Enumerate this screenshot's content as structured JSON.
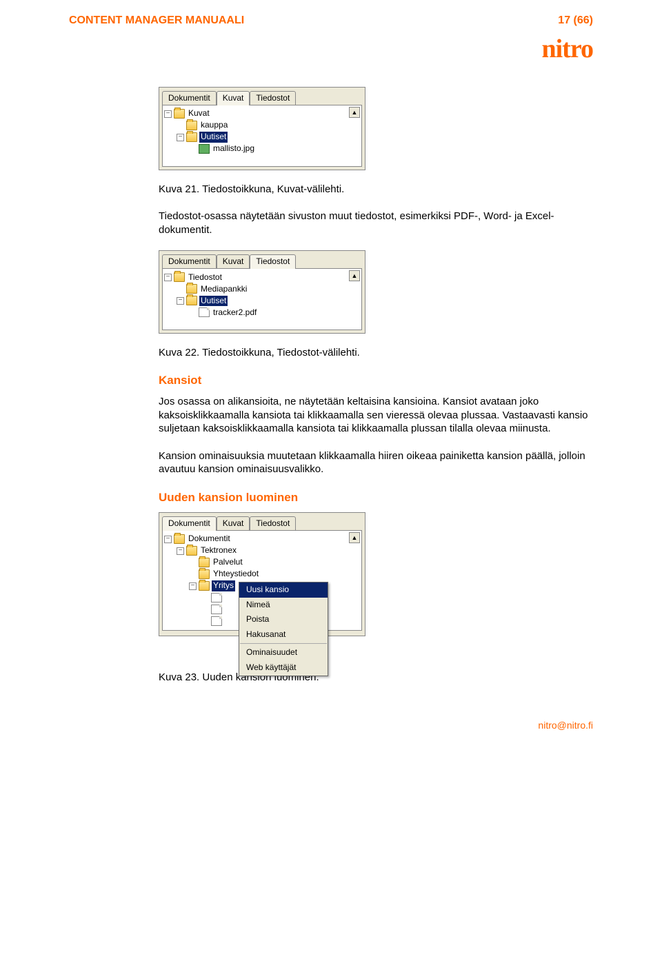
{
  "colors": {
    "accent": "#ff6600",
    "panel_bg": "#ece9d8",
    "selection_bg": "#0a246a",
    "selection_fg": "#ffffff"
  },
  "header": {
    "title": "CONTENT MANAGER MANUAALI",
    "page": "17 (66)",
    "logo_text": "nitro"
  },
  "panel1": {
    "tabs": [
      "Dokumentit",
      "Kuvat",
      "Tiedostot"
    ],
    "active_tab": 1,
    "rows": [
      {
        "indent": 0,
        "toggle": "−",
        "icon": "folder",
        "label": "Kuvat",
        "selected": false
      },
      {
        "indent": 1,
        "toggle": "",
        "icon": "folder",
        "label": "kauppa",
        "selected": false
      },
      {
        "indent": 1,
        "toggle": "−",
        "icon": "folder",
        "label": "Uutiset",
        "selected": true
      },
      {
        "indent": 2,
        "toggle": "",
        "icon": "img",
        "label": "mallisto.jpg",
        "selected": false
      }
    ]
  },
  "caption1": "Kuva 21. Tiedostoikkuna, Kuvat-välilehti.",
  "para1": "Tiedostot-osassa näytetään sivuston muut tiedostot, esimerkiksi PDF-, Word- ja Excel-dokumentit.",
  "panel2": {
    "tabs": [
      "Dokumentit",
      "Kuvat",
      "Tiedostot"
    ],
    "active_tab": 2,
    "rows": [
      {
        "indent": 0,
        "toggle": "−",
        "icon": "folder",
        "label": "Tiedostot",
        "selected": false
      },
      {
        "indent": 1,
        "toggle": "",
        "icon": "folder",
        "label": "Mediapankki",
        "selected": false
      },
      {
        "indent": 1,
        "toggle": "−",
        "icon": "folder",
        "label": "Uutiset",
        "selected": true
      },
      {
        "indent": 2,
        "toggle": "",
        "icon": "doc",
        "label": "tracker2.pdf",
        "selected": false
      }
    ]
  },
  "caption2": "Kuva 22. Tiedostoikkuna, Tiedostot-välilehti.",
  "section_kansiot": "Kansiot",
  "para2": "Jos osassa on alikansioita, ne näytetään keltaisina kansioina. Kansiot avataan joko kaksoisklikkaamalla kansiota tai klikkaamalla sen vieressä olevaa plussaa. Vastaavasti kansio suljetaan kaksoisklikkaamalla kansiota tai klikkaamalla plussan tilalla olevaa miinusta.",
  "para3": "Kansion ominaisuuksia muutetaan klikkaamalla hiiren oikeaa painiketta kansion päällä, jolloin avautuu kansion ominaisuusvalikko.",
  "section_uusi": "Uuden kansion luominen",
  "panel3": {
    "tabs": [
      "Dokumentit",
      "Kuvat",
      "Tiedostot"
    ],
    "active_tab": 0,
    "rows": [
      {
        "indent": 0,
        "toggle": "−",
        "icon": "folder",
        "label": "Dokumentit",
        "selected": false
      },
      {
        "indent": 1,
        "toggle": "−",
        "icon": "folder",
        "label": "Tektronex",
        "selected": false
      },
      {
        "indent": 2,
        "toggle": "",
        "icon": "folder",
        "label": "Palvelut",
        "selected": false
      },
      {
        "indent": 2,
        "toggle": "",
        "icon": "folder",
        "label": "Yhteystiedot",
        "selected": false
      },
      {
        "indent": 2,
        "toggle": "−",
        "icon": "folder",
        "label": "Yritys",
        "selected": true
      },
      {
        "indent": 3,
        "toggle": "",
        "icon": "doc",
        "label": "",
        "selected": false
      },
      {
        "indent": 3,
        "toggle": "",
        "icon": "doc",
        "label": "",
        "selected": false
      },
      {
        "indent": 3,
        "toggle": "",
        "icon": "doc",
        "label": "",
        "selected": false
      }
    ],
    "menu": {
      "items": [
        "Uusi kansio",
        "Nimeä",
        "Poista",
        "Hakusanat",
        "Ominaisuudet",
        "Web käyttäjät"
      ],
      "highlighted": 0,
      "sep_after": [
        3
      ]
    }
  },
  "caption3": "Kuva 23. Uuden kansion luominen.",
  "footer": "nitro@nitro.fi"
}
